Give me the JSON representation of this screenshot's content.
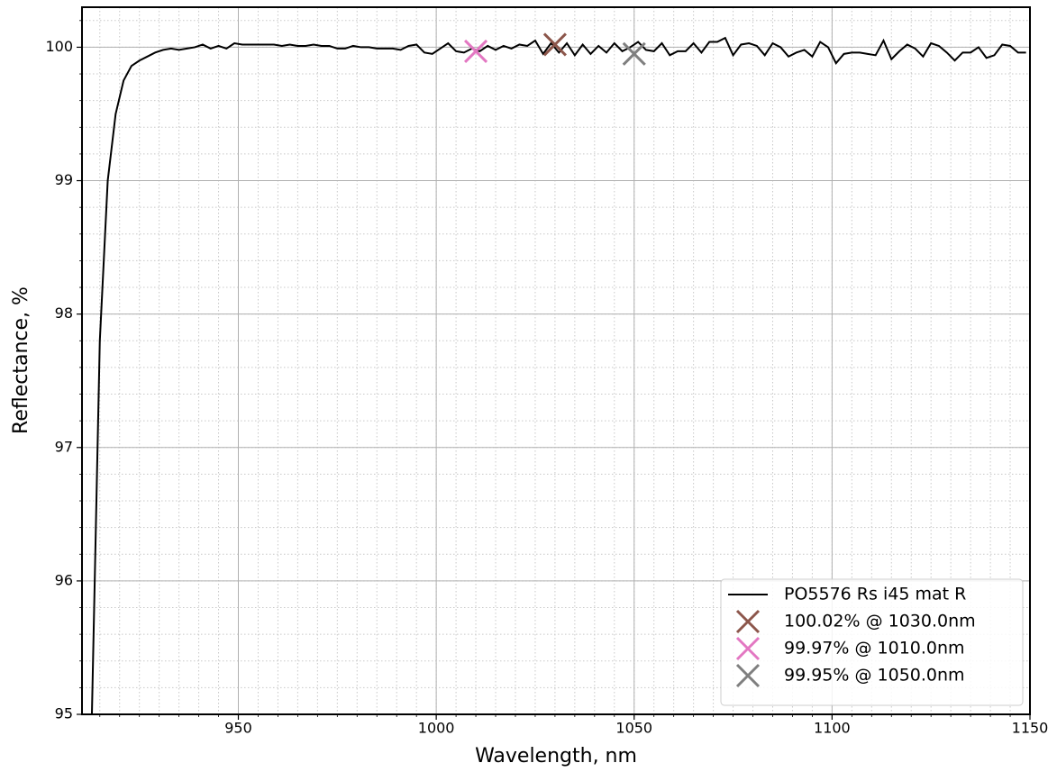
{
  "chart_data": {
    "type": "line",
    "xlabel": "Wavelength, nm",
    "ylabel": "Reflectance, %",
    "xlim": [
      910.5,
      1150
    ],
    "ylim": [
      95,
      100.3
    ],
    "xticks": [
      950,
      1000,
      1050,
      1100,
      1150
    ],
    "yticks": [
      95,
      96,
      97,
      98,
      99,
      100
    ],
    "grid": true,
    "minor_grid": true,
    "legend": "lower right",
    "series": [
      {
        "name": "PO5576 Rs i45 mat R",
        "color": "#000000",
        "marker": "line",
        "x": [
          913,
          915,
          917,
          919,
          921,
          923,
          925,
          927,
          929,
          931,
          933,
          935,
          937,
          939,
          941,
          943,
          945,
          947,
          949,
          951,
          953,
          955,
          957,
          959,
          961,
          963,
          965,
          967,
          969,
          971,
          973,
          975,
          977,
          979,
          981,
          983,
          985,
          987,
          989,
          991,
          993,
          995,
          997,
          999,
          1001,
          1003,
          1005,
          1007,
          1009,
          1011,
          1013,
          1015,
          1017,
          1019,
          1021,
          1023,
          1025,
          1027,
          1029,
          1031,
          1033,
          1035,
          1037,
          1039,
          1041,
          1043,
          1045,
          1047,
          1049,
          1051,
          1053,
          1055,
          1057,
          1059,
          1061,
          1063,
          1065,
          1067,
          1069,
          1071,
          1073,
          1075,
          1077,
          1079,
          1081,
          1083,
          1085,
          1087,
          1089,
          1091,
          1093,
          1095,
          1097,
          1099,
          1101,
          1103,
          1105,
          1107,
          1109,
          1111,
          1113,
          1115,
          1117,
          1119,
          1121,
          1123,
          1125,
          1127,
          1129,
          1131,
          1133,
          1135,
          1137,
          1139,
          1141,
          1143,
          1145,
          1147,
          1149
        ],
        "values": [
          95.0,
          97.8,
          99.0,
          99.5,
          99.75,
          99.86,
          99.9,
          99.93,
          99.96,
          99.98,
          99.99,
          99.98,
          99.99,
          100.0,
          100.02,
          99.99,
          100.01,
          99.99,
          100.03,
          100.02,
          100.02,
          100.02,
          100.02,
          100.02,
          100.01,
          100.02,
          100.01,
          100.01,
          100.02,
          100.01,
          100.01,
          99.99,
          99.99,
          100.01,
          100.0,
          100.0,
          99.99,
          99.99,
          99.99,
          99.98,
          100.01,
          100.02,
          99.96,
          99.95,
          99.99,
          100.03,
          99.97,
          99.96,
          99.99,
          99.97,
          100.01,
          99.98,
          100.01,
          99.99,
          100.02,
          100.01,
          100.05,
          99.95,
          100.03,
          99.96,
          100.03,
          99.94,
          100.02,
          99.95,
          100.01,
          99.96,
          100.03,
          99.97,
          100.0,
          100.04,
          99.98,
          99.97,
          100.03,
          99.94,
          99.97,
          99.97,
          100.03,
          99.96,
          100.04,
          100.04,
          100.07,
          99.94,
          100.02,
          100.03,
          100.01,
          99.94,
          100.03,
          100.0,
          99.93,
          99.96,
          99.98,
          99.93,
          100.04,
          100.0,
          99.88,
          99.95,
          99.96,
          99.96,
          99.95,
          99.94,
          100.05,
          99.91,
          99.97,
          100.02,
          99.99,
          99.93,
          100.03,
          100.01,
          99.96,
          99.9,
          99.96,
          99.96,
          100.0,
          99.92,
          99.94,
          100.02,
          100.01,
          99.96,
          99.96
        ]
      },
      {
        "name": "100.02% @ 1030.0nm",
        "color": "#8c564b",
        "marker": "x",
        "x": [
          1030
        ],
        "values": [
          100.02
        ]
      },
      {
        "name": "99.97% @ 1010.0nm",
        "color": "#e377c2",
        "marker": "x",
        "x": [
          1010
        ],
        "values": [
          99.97
        ]
      },
      {
        "name": "99.95% @ 1050.0nm",
        "color": "#7f7f7f",
        "marker": "x",
        "x": [
          1050
        ],
        "values": [
          99.95
        ]
      }
    ]
  }
}
